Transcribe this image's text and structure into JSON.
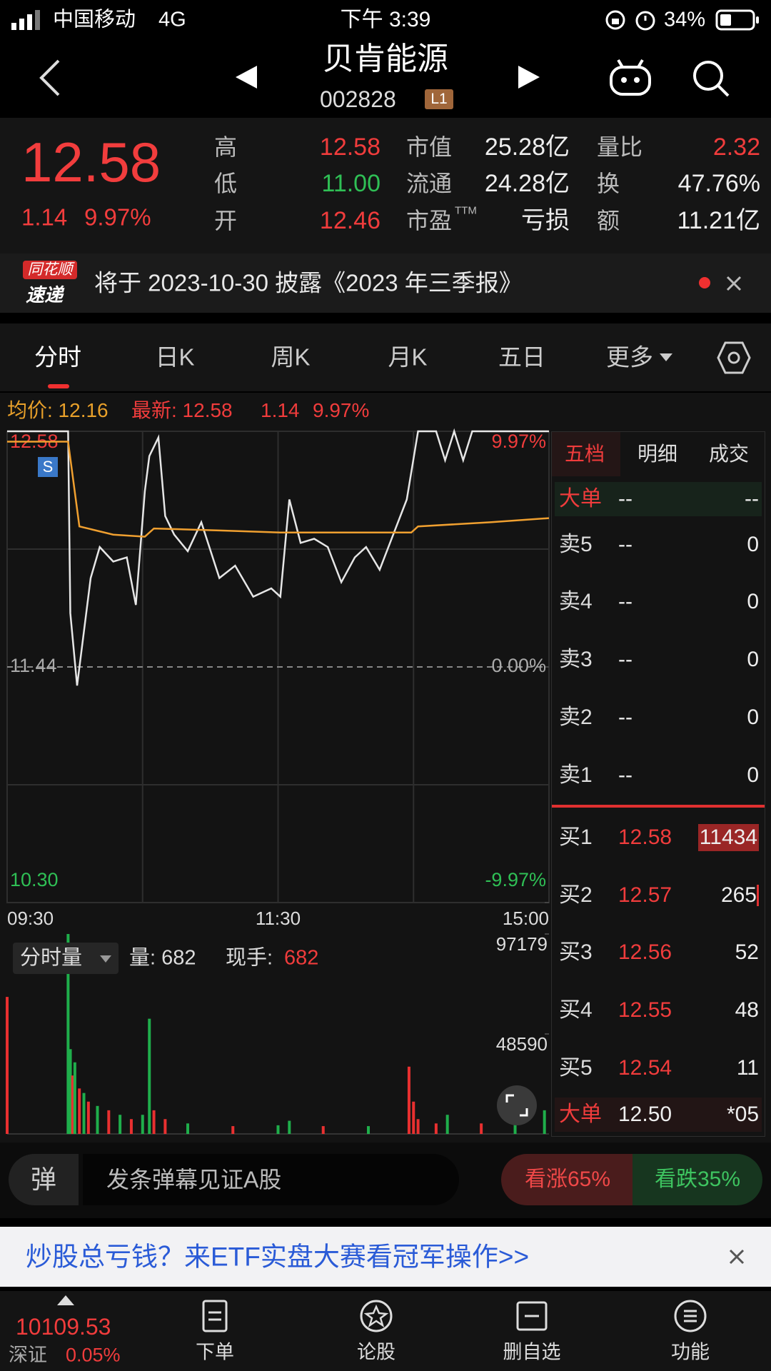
{
  "status_bar": {
    "carrier": "中国移动",
    "network": "4G",
    "time": "下午 3:39",
    "battery": "34%"
  },
  "header": {
    "title": "贝肯能源",
    "code": "002828",
    "badge": "L1"
  },
  "quote": {
    "price": "12.58",
    "change": "1.14",
    "change_pct": "9.97%",
    "stats": [
      {
        "label": "高",
        "value": "12.58"
      },
      {
        "label": "低",
        "value": "11.00"
      },
      {
        "label": "开",
        "value": "12.46"
      },
      {
        "label": "市值",
        "value": "25.28亿"
      },
      {
        "label": "流通",
        "value": "24.28亿"
      },
      {
        "label": "市盈",
        "sup": "TTM",
        "value": "亏损"
      },
      {
        "label": "量比",
        "value": "2.32"
      },
      {
        "label": "换",
        "value": "47.76%"
      },
      {
        "label": "额",
        "value": "11.21亿"
      }
    ]
  },
  "notice": {
    "logo_top": "同花顺",
    "logo_bottom": "速递",
    "text": "将于 2023-10-30 披露《2023 年三季报》"
  },
  "tabs": [
    "分时",
    "日K",
    "周K",
    "月K",
    "五日",
    "更多"
  ],
  "chart_info": {
    "avg": "均价: 12.16",
    "latest": "最新: 12.58",
    "change": "1.14",
    "change_pct": "9.97%"
  },
  "chart_data": [
    {
      "type": "line",
      "xlim": [
        0,
        240
      ],
      "xticks": [
        {
          "value": 0,
          "label": "09:30"
        },
        {
          "value": 120,
          "label": "11:30"
        },
        {
          "value": 240,
          "label": "15:00"
        }
      ],
      "ylim": [
        10.3,
        12.58
      ],
      "yticks": [
        12.58,
        11.44,
        {
          "value": 10.3,
          "label": "10.30"
        }
      ],
      "y2lim": [
        -9.97,
        9.97
      ],
      "y2ticks": [
        {
          "value": 9.97,
          "label": "9.97%"
        },
        {
          "value": 0,
          "label": "0.00%"
        },
        {
          "value": -9.97,
          "label": "-9.97%"
        }
      ],
      "signal": "S",
      "series": [
        {
          "color": "#e6e6e6",
          "x": [
            0,
            27,
            28,
            31,
            34,
            37,
            41,
            47,
            53,
            57,
            61,
            63,
            67,
            70,
            74,
            80,
            86,
            94,
            101,
            109,
            117,
            121,
            125,
            130,
            136,
            142,
            148,
            154,
            159,
            165,
            171,
            177,
            182,
            190,
            194,
            198,
            202,
            206,
            240
          ],
          "values": [
            12.58,
            12.58,
            11.7,
            11.35,
            11.61,
            11.87,
            12.02,
            11.95,
            11.97,
            11.74,
            12.29,
            12.46,
            12.55,
            12.17,
            12.08,
            12.0,
            12.14,
            11.87,
            11.93,
            11.78,
            11.82,
            11.78,
            12.25,
            12.04,
            12.06,
            12.02,
            11.85,
            11.97,
            12.02,
            11.91,
            12.08,
            12.25,
            12.58,
            12.58,
            12.44,
            12.58,
            12.44,
            12.58,
            12.58
          ]
        },
        {
          "color": "#f0a030",
          "x": [
            0,
            27,
            32,
            47,
            61,
            65,
            94,
            121,
            179,
            182,
            214,
            240
          ],
          "values": [
            12.53,
            12.53,
            12.12,
            12.08,
            12.07,
            12.11,
            12.1,
            12.09,
            12.09,
            12.12,
            12.14,
            12.16
          ]
        }
      ]
    },
    {
      "type": "bar",
      "label": "分时量",
      "volume_label": "量: 682",
      "current_label": "现手:",
      "current_value": "682",
      "xlim": [
        0,
        240
      ],
      "ylim": [
        0,
        97179
      ],
      "yticks": [
        97179,
        48590
      ],
      "x": [
        0,
        27,
        28,
        29,
        30,
        32,
        34,
        36,
        40,
        45,
        50,
        55,
        60,
        63,
        65,
        70,
        80,
        100,
        120,
        125,
        140,
        160,
        178,
        180,
        182,
        190,
        195,
        210,
        225,
        238
      ],
      "values": [
        66600,
        97179,
        41200,
        28400,
        34800,
        22100,
        19900,
        15700,
        13600,
        11500,
        9300,
        7200,
        9300,
        56000,
        11500,
        7200,
        5100,
        3800,
        4200,
        6400,
        3800,
        3800,
        32700,
        15700,
        7200,
        5100,
        9300,
        5100,
        7200,
        11500
      ],
      "colors": [
        "#e93030",
        "#1fae4b",
        "#1fae4b",
        "#e93030",
        "#1fae4b",
        "#e93030",
        "#1fae4b",
        "#e93030",
        "#1fae4b",
        "#e93030",
        "#1fae4b",
        "#e93030",
        "#1fae4b",
        "#1fae4b",
        "#e93030",
        "#e93030",
        "#1fae4b",
        "#e93030",
        "#1fae4b",
        "#1fae4b",
        "#e93030",
        "#1fae4b",
        "#e93030",
        "#e93030",
        "#e93030",
        "#e93030",
        "#1fae4b",
        "#e93030",
        "#1fae4b",
        "#1fae4b"
      ]
    }
  ],
  "order_book": {
    "tabs": [
      "五档",
      "明细",
      "成交"
    ],
    "big_order_top": {
      "label": "大单",
      "price": "--",
      "volume": "--"
    },
    "asks": [
      {
        "label": "卖5",
        "price": "--",
        "volume": "0"
      },
      {
        "label": "卖4",
        "price": "--",
        "volume": "0"
      },
      {
        "label": "卖3",
        "price": "--",
        "volume": "0"
      },
      {
        "label": "卖2",
        "price": "--",
        "volume": "0"
      },
      {
        "label": "卖1",
        "price": "--",
        "volume": "0"
      }
    ],
    "bids": [
      {
        "label": "买1",
        "price": "12.58",
        "volume": "11434"
      },
      {
        "label": "买2",
        "price": "12.57",
        "volume": "265"
      },
      {
        "label": "买3",
        "price": "12.56",
        "volume": "52"
      },
      {
        "label": "买4",
        "price": "12.55",
        "volume": "48"
      },
      {
        "label": "买5",
        "price": "12.54",
        "volume": "11"
      }
    ],
    "big_order_bottom": {
      "label": "大单",
      "price": "12.50",
      "volume": "*05"
    }
  },
  "danmaku": {
    "icon": "弹",
    "placeholder": "发条弹幕见证A股",
    "bull": "看涨65%",
    "bear": "看跌35%"
  },
  "ad": {
    "text": "炒股总亏钱？来ETF实盘大赛看冠军操作>>"
  },
  "bottom_nav": {
    "index_value": "10109.53",
    "index_name": "深证",
    "index_change": "0.05%",
    "items": [
      "下单",
      "论股",
      "删自选",
      "功能"
    ]
  }
}
